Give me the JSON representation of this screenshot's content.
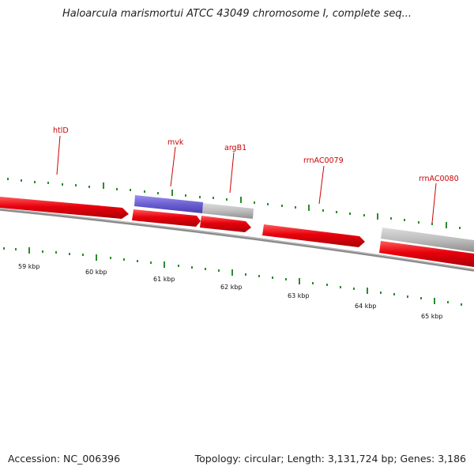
{
  "title": "Haloarcula marismortui ATCC 43049 chromosome I, complete seq...",
  "accession": "Accession: NC_006396",
  "summary": "Topology: circular; Length: 3,131,724 bp; Genes: 3,186",
  "colors": {
    "gene_red": "#e8000b",
    "gene_blue": "#6b5fd1",
    "gene_gray": "#b8b8b8",
    "backbone": "#707070",
    "tick_green": "#2d8a2d",
    "label_red": "#cc0000"
  },
  "scale_labels": [
    "59 kbp",
    "60 kbp",
    "61 kbp",
    "62 kbp",
    "63 kbp",
    "64 kbp",
    "65 kbp"
  ],
  "gene_labels": [
    "htlD",
    "mvk",
    "argB1",
    "rrnAC0079",
    "rrnAC0080"
  ]
}
